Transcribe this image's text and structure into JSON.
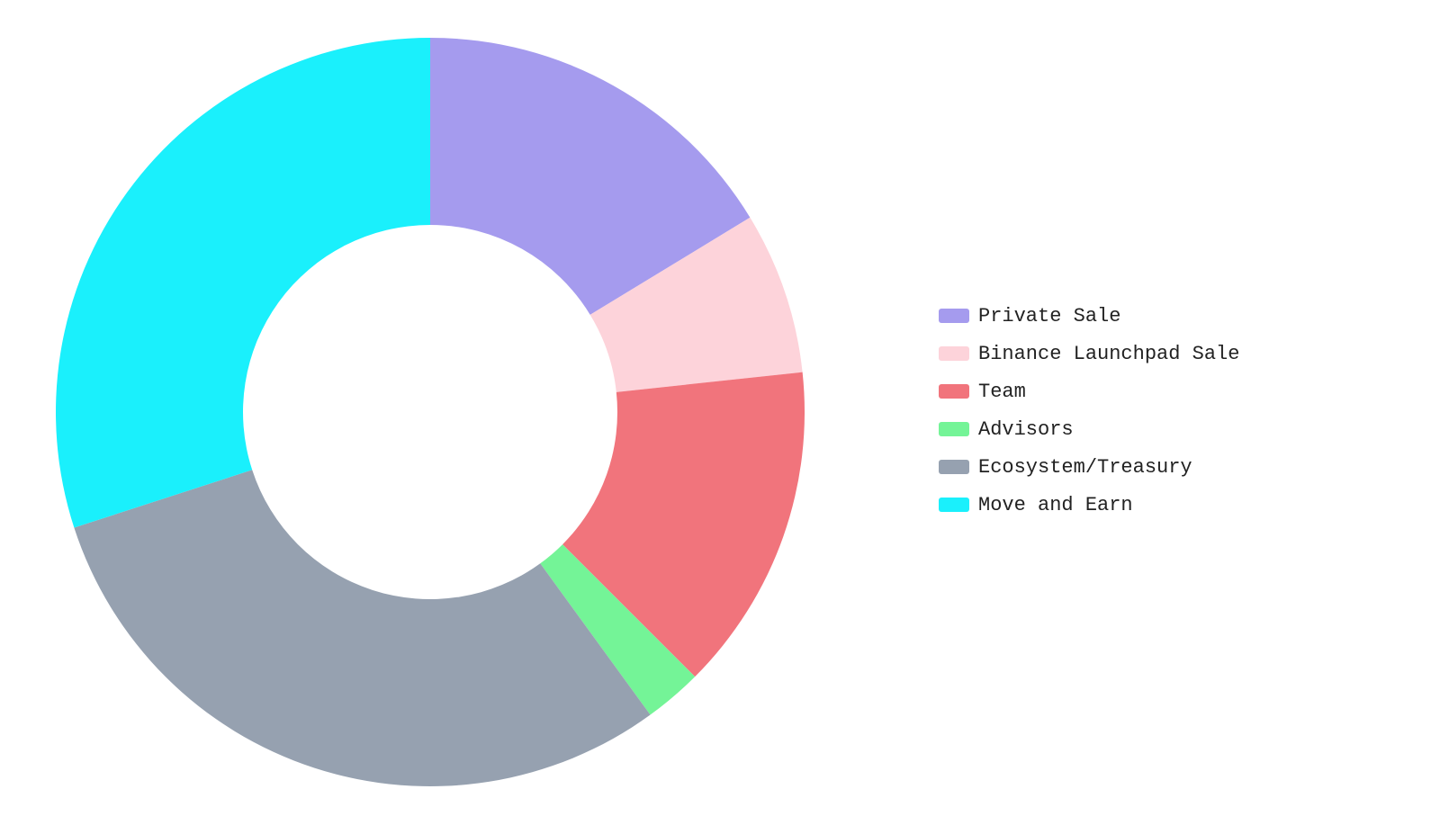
{
  "chart_data": {
    "type": "pie",
    "categories": [
      "Private Sale",
      "Binance Launchpad Sale",
      "Team",
      "Advisors",
      "Ecosystem/Treasury",
      "Move and Earn"
    ],
    "values": [
      16.3,
      7,
      14.2,
      2.5,
      30,
      30
    ],
    "colors": [
      "#a59bee",
      "#fdd3da",
      "#f1747c",
      "#74f497",
      "#96a1b0",
      "#1af0fc"
    ],
    "legend": "right"
  }
}
